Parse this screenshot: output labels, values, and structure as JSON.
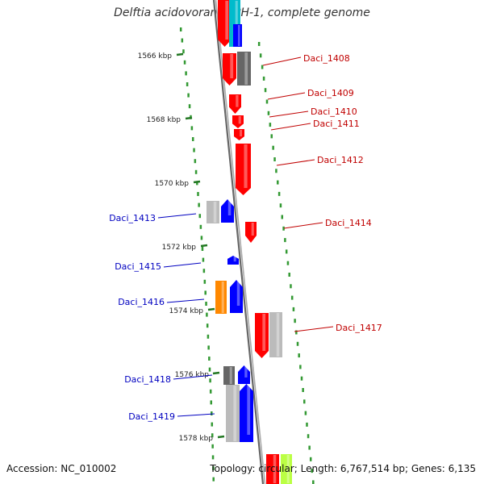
{
  "title": "Delftia acidovorans SPH-1, complete genome",
  "accession": "Accession: NC_010002",
  "topology": "Topology: circular; Length: 6,767,514 bp; Genes: 6,135",
  "colors": {
    "backbone": "#777777",
    "forward_label": "#c00000",
    "reverse_label": "#0000c0",
    "red": "#ff0000",
    "blue": "#0000ff",
    "gray": "#666666",
    "lightgray": "#bbbbbb",
    "orange": "#ff8800",
    "cyan": "#00bbcc",
    "lime": "#bbff44",
    "tick": "#227722"
  },
  "ticks": [
    {
      "label": "1566 kbp"
    },
    {
      "label": "1568 kbp"
    },
    {
      "label": "1570 kbp"
    },
    {
      "label": "1572 kbp"
    },
    {
      "label": "1574 kbp"
    },
    {
      "label": "1576 kbp"
    },
    {
      "label": "1578 kbp"
    }
  ],
  "labels": [
    {
      "text": "Daci_1408",
      "strand": "forward"
    },
    {
      "text": "Daci_1409",
      "strand": "forward"
    },
    {
      "text": "Daci_1410",
      "strand": "forward"
    },
    {
      "text": "Daci_1411",
      "strand": "forward"
    },
    {
      "text": "Daci_1412",
      "strand": "forward"
    },
    {
      "text": "Daci_1414",
      "strand": "forward"
    },
    {
      "text": "Daci_1417",
      "strand": "forward"
    },
    {
      "text": "Daci_1413",
      "strand": "reverse"
    },
    {
      "text": "Daci_1415",
      "strand": "reverse"
    },
    {
      "text": "Daci_1416",
      "strand": "reverse"
    },
    {
      "text": "Daci_1418",
      "strand": "reverse"
    },
    {
      "text": "Daci_1419",
      "strand": "reverse"
    }
  ]
}
